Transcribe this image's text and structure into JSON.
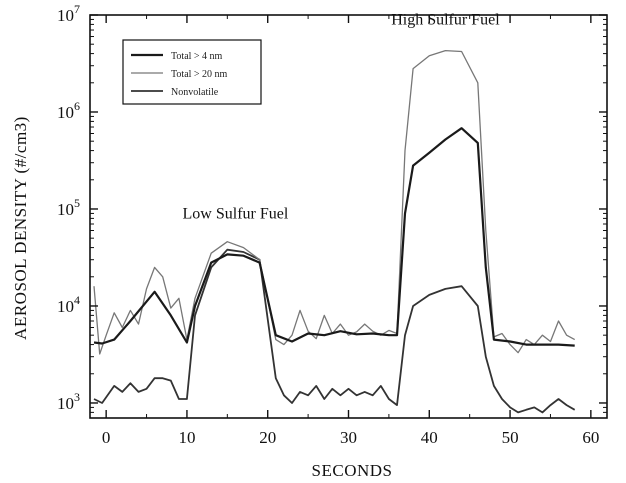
{
  "chart_data": {
    "type": "line",
    "title": "",
    "xlabel": "SECONDS",
    "ylabel": "AEROSOL DENSITY (#/cm3)",
    "xlim": [
      -2,
      62
    ],
    "ylim": [
      700,
      10000000
    ],
    "y_scale": "log",
    "x_ticks": [
      0,
      10,
      20,
      30,
      40,
      50,
      60
    ],
    "x_tick_labels": [
      "0",
      "10",
      "20",
      "30",
      "40",
      "50",
      "60"
    ],
    "y_ticks": [
      1000,
      10000,
      100000,
      1000000,
      10000000
    ],
    "y_tick_labels": [
      {
        "base": "10",
        "exp": "3"
      },
      {
        "base": "10",
        "exp": "4"
      },
      {
        "base": "10",
        "exp": "5"
      },
      {
        "base": "10",
        "exp": "6"
      },
      {
        "base": "10",
        "exp": "7"
      }
    ],
    "grid": false,
    "legend": {
      "position": "top-left"
    },
    "annotations": [
      {
        "text": "Low Sulfur Fuel",
        "x": 16,
        "y": 80000
      },
      {
        "text": "High Sulfur Fuel",
        "x": 42,
        "y": 8000000
      }
    ],
    "series": [
      {
        "name": "Total > 4 nm",
        "color": "#1a1a1a",
        "width": 2.2,
        "x": [
          -1.5,
          -0.5,
          1,
          3,
          6,
          8,
          10,
          11,
          13,
          15,
          17,
          19,
          21,
          23,
          25,
          27,
          29,
          31,
          33,
          35,
          36,
          37,
          38,
          40,
          42,
          44,
          46,
          47,
          48,
          50,
          52,
          54,
          56,
          58
        ],
        "y": [
          4200,
          4100,
          4500,
          7000,
          14000,
          8000,
          4200,
          10000,
          28000,
          34000,
          33000,
          28000,
          5000,
          4300,
          5200,
          5000,
          5500,
          5100,
          5200,
          5000,
          5000,
          90000,
          280000,
          380000,
          520000,
          680000,
          480000,
          25000,
          4500,
          4300,
          4000,
          4000,
          4000,
          3900
        ]
      },
      {
        "name": "Total > 20 nm",
        "color": "#777777",
        "width": 1.3,
        "x": [
          -1.5,
          -0.8,
          0,
          1,
          2,
          3,
          4,
          5,
          6,
          7,
          8,
          9,
          10,
          11,
          13,
          15,
          17,
          19,
          21,
          22,
          23,
          24,
          25,
          26,
          27,
          28,
          29,
          30,
          31,
          32,
          33,
          34,
          35,
          36,
          37,
          38,
          40,
          42,
          44,
          46,
          47,
          48,
          49,
          50,
          51,
          52,
          53,
          54,
          55,
          56,
          57,
          58
        ],
        "y": [
          16000,
          3200,
          5000,
          8500,
          6000,
          9000,
          6500,
          15000,
          25000,
          20000,
          9500,
          12000,
          4500,
          12000,
          35000,
          46000,
          40000,
          30000,
          4500,
          4000,
          5000,
          9000,
          5500,
          4600,
          8000,
          5200,
          6500,
          5000,
          5400,
          6500,
          5500,
          5000,
          5600,
          5200,
          400000,
          2800000,
          3800000,
          4300000,
          4200000,
          2000000,
          60000,
          4800,
          5200,
          4000,
          3300,
          4500,
          4000,
          5000,
          4300,
          7000,
          5000,
          4500
        ]
      },
      {
        "name": "Nonvolatile",
        "color": "#333333",
        "width": 1.8,
        "x": [
          -1.5,
          -0.5,
          1,
          2,
          3,
          4,
          5,
          6,
          7,
          8,
          9,
          10,
          11,
          13,
          15,
          17,
          19,
          21,
          22,
          23,
          24,
          25,
          26,
          27,
          28,
          29,
          30,
          31,
          32,
          33,
          34,
          35,
          36,
          37,
          38,
          40,
          42,
          44,
          46,
          47,
          48,
          49,
          50,
          51,
          52,
          53,
          54,
          55,
          56,
          57,
          58
        ],
        "y": [
          1100,
          1000,
          1500,
          1300,
          1600,
          1300,
          1400,
          1800,
          1800,
          1700,
          1100,
          1100,
          8000,
          25000,
          38000,
          36000,
          30000,
          1800,
          1200,
          1000,
          1300,
          1200,
          1500,
          1100,
          1400,
          1200,
          1400,
          1200,
          1300,
          1200,
          1500,
          1100,
          950,
          5000,
          10000,
          13000,
          15000,
          16000,
          10000,
          3000,
          1500,
          1100,
          900,
          800,
          850,
          900,
          800,
          950,
          1100,
          950,
          850
        ]
      }
    ]
  }
}
